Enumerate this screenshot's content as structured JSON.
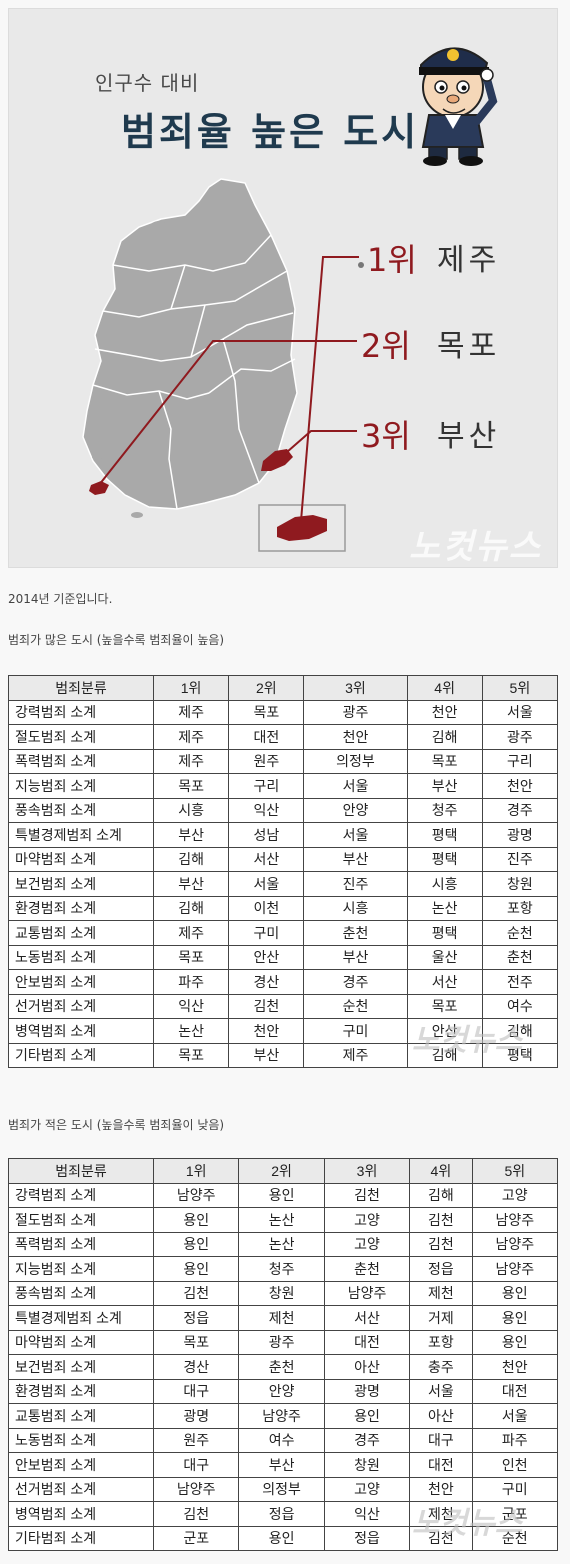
{
  "infographic": {
    "subtitle": "인구수 대비",
    "title": "범죄율 높은 도시",
    "ranks": [
      {
        "rank": "1위",
        "city": "제주"
      },
      {
        "rank": "2위",
        "city": "목포"
      },
      {
        "rank": "3위",
        "city": "부산"
      }
    ],
    "watermark": "노컷뉴스",
    "colors": {
      "highlight": "#8f1a1f",
      "map": "#a9a9a9",
      "title": "#1f3a4e"
    }
  },
  "caption_basis": "2014년 기준입니다.",
  "high_table": {
    "caption": "범죄가 많은 도시 (높을수록 범죄율이 높음)",
    "headers": [
      "범죄분류",
      "1위",
      "2위",
      "3위",
      "4위",
      "5위"
    ],
    "rows": [
      [
        "강력범죄 소계",
        "제주",
        "목포",
        "광주",
        "천안",
        "서울"
      ],
      [
        "절도범죄 소계",
        "제주",
        "대전",
        "천안",
        "김해",
        "광주"
      ],
      [
        "폭력범죄 소계",
        "제주",
        "원주",
        "의정부",
        "목포",
        "구리"
      ],
      [
        "지능범죄 소계",
        "목포",
        "구리",
        "서울",
        "부산",
        "천안"
      ],
      [
        "풍속범죄 소계",
        "시흥",
        "익산",
        "안양",
        "청주",
        "경주"
      ],
      [
        "특별경제범죄 소계",
        "부산",
        "성남",
        "서울",
        "평택",
        "광명"
      ],
      [
        "마약범죄 소계",
        "김해",
        "서산",
        "부산",
        "평택",
        "진주"
      ],
      [
        "보건범죄 소계",
        "부산",
        "서울",
        "진주",
        "시흥",
        "창원"
      ],
      [
        "환경범죄 소계",
        "김해",
        "이천",
        "시흥",
        "논산",
        "포항"
      ],
      [
        "교통범죄 소계",
        "제주",
        "구미",
        "춘천",
        "평택",
        "순천"
      ],
      [
        "노동범죄 소계",
        "목포",
        "안산",
        "부산",
        "울산",
        "춘천"
      ],
      [
        "안보범죄 소계",
        "파주",
        "경산",
        "경주",
        "서산",
        "전주"
      ],
      [
        "선거범죄 소계",
        "익산",
        "김천",
        "순천",
        "목포",
        "여수"
      ],
      [
        "병역범죄 소계",
        "논산",
        "천안",
        "구미",
        "안산",
        "김해"
      ],
      [
        "기타범죄 소계",
        "목포",
        "부산",
        "제주",
        "김해",
        "평택"
      ]
    ]
  },
  "low_table": {
    "caption": "범죄가 적은 도시 (높을수록 범죄율이 낮음)",
    "headers": [
      "범죄분류",
      "1위",
      "2위",
      "3위",
      "4위",
      "5위"
    ],
    "rows": [
      [
        "강력범죄 소계",
        "남양주",
        "용인",
        "김천",
        "김해",
        "고양"
      ],
      [
        "절도범죄 소계",
        "용인",
        "논산",
        "고양",
        "김천",
        "남양주"
      ],
      [
        "폭력범죄 소계",
        "용인",
        "논산",
        "고양",
        "김천",
        "남양주"
      ],
      [
        "지능범죄 소계",
        "용인",
        "청주",
        "춘천",
        "정읍",
        "남양주"
      ],
      [
        "풍속범죄 소계",
        "김천",
        "창원",
        "남양주",
        "제천",
        "용인"
      ],
      [
        "특별경제범죄 소계",
        "정읍",
        "제천",
        "서산",
        "거제",
        "용인"
      ],
      [
        "마약범죄 소계",
        "목포",
        "광주",
        "대전",
        "포항",
        "용인"
      ],
      [
        "보건범죄 소계",
        "경산",
        "춘천",
        "아산",
        "충주",
        "천안"
      ],
      [
        "환경범죄 소계",
        "대구",
        "안양",
        "광명",
        "서울",
        "대전"
      ],
      [
        "교통범죄 소계",
        "광명",
        "남양주",
        "용인",
        "아산",
        "서울"
      ],
      [
        "노동범죄 소계",
        "원주",
        "여수",
        "경주",
        "대구",
        "파주"
      ],
      [
        "안보범죄 소계",
        "대구",
        "부산",
        "창원",
        "대전",
        "인천"
      ],
      [
        "선거범죄 소계",
        "남양주",
        "의정부",
        "고양",
        "천안",
        "구미"
      ],
      [
        "병역범죄 소계",
        "김천",
        "정읍",
        "익산",
        "제천",
        "군포"
      ],
      [
        "기타범죄 소계",
        "군포",
        "용인",
        "정읍",
        "김천",
        "순천"
      ]
    ]
  }
}
